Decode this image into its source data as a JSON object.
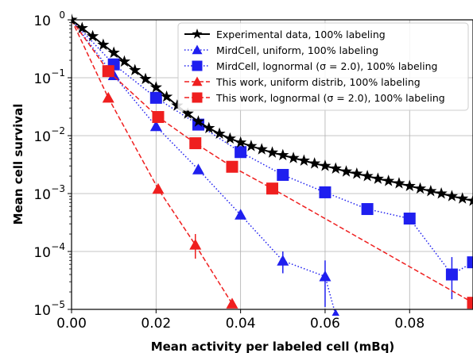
{
  "chart_data": {
    "type": "scatter",
    "xlabel": "Mean activity per labeled cell (mBq)",
    "ylabel": "Mean cell survival",
    "xlim": [
      0.0,
      0.095
    ],
    "ylim": [
      1e-05,
      1
    ],
    "yscale": "log",
    "grid": true,
    "legend_position": "top-right",
    "x_ticks": [
      {
        "value": 0.0,
        "label": "0.00"
      },
      {
        "value": 0.02,
        "label": "0.02"
      },
      {
        "value": 0.04,
        "label": "0.04"
      },
      {
        "value": 0.06,
        "label": "0.06"
      },
      {
        "value": 0.08,
        "label": "0.08"
      }
    ],
    "y_ticks": [
      {
        "value": 1,
        "base": "10",
        "exp": "0"
      },
      {
        "value": 0.1,
        "base": "10",
        "exp": "−1"
      },
      {
        "value": 0.01,
        "base": "10",
        "exp": "−2"
      },
      {
        "value": 0.001,
        "base": "10",
        "exp": "−3"
      },
      {
        "value": 0.0001,
        "base": "10",
        "exp": "−4"
      },
      {
        "value": 1e-05,
        "base": "10",
        "exp": "−5"
      }
    ],
    "series": [
      {
        "name": "Experimental data, 100% labeling",
        "color": "#000000",
        "marker": "star",
        "line": "solid",
        "points": [
          [
            0.0,
            1.0
          ],
          [
            0.0025,
            0.72
          ],
          [
            0.005,
            0.52
          ],
          [
            0.0075,
            0.37
          ],
          [
            0.01,
            0.27
          ],
          [
            0.0125,
            0.19
          ],
          [
            0.015,
            0.135
          ],
          [
            0.0175,
            0.095
          ],
          [
            0.02,
            0.068
          ],
          [
            0.0225,
            0.047
          ],
          [
            0.025,
            0.033
          ],
          [
            0.0275,
            0.024
          ],
          [
            0.03,
            0.0175
          ],
          [
            0.0325,
            0.0135
          ],
          [
            0.035,
            0.0108
          ],
          [
            0.0375,
            0.0089
          ],
          [
            0.04,
            0.0076
          ],
          [
            0.0425,
            0.0066
          ],
          [
            0.045,
            0.0058
          ],
          [
            0.0475,
            0.0051
          ],
          [
            0.05,
            0.0046
          ],
          [
            0.0525,
            0.0041
          ],
          [
            0.055,
            0.0037
          ],
          [
            0.0575,
            0.0033
          ],
          [
            0.06,
            0.003
          ],
          [
            0.0625,
            0.0027
          ],
          [
            0.065,
            0.0024
          ],
          [
            0.0675,
            0.0022
          ],
          [
            0.07,
            0.002
          ],
          [
            0.0725,
            0.0018
          ],
          [
            0.075,
            0.00165
          ],
          [
            0.0775,
            0.0015
          ],
          [
            0.08,
            0.00135
          ],
          [
            0.0825,
            0.00122
          ],
          [
            0.085,
            0.0011
          ],
          [
            0.0875,
            0.001
          ],
          [
            0.09,
            0.0009
          ],
          [
            0.0925,
            0.00082
          ],
          [
            0.095,
            0.00075
          ]
        ]
      },
      {
        "name": "MirdCell, uniform, 100% labeling",
        "color": "#1f1fef",
        "marker": "triangle",
        "line": "dotted",
        "points": [
          [
            0.0,
            1.0
          ],
          [
            0.01,
            0.11
          ],
          [
            0.02,
            0.0145
          ],
          [
            0.03,
            0.0026
          ],
          [
            0.04,
            0.00043
          ],
          [
            0.05,
            6.9e-05
          ],
          [
            0.06,
            3.7e-05
          ],
          [
            0.0625,
            8e-06
          ]
        ],
        "error_bars": [
          {
            "x": 0.05,
            "y": 6.9e-05,
            "lo": 4.2e-05,
            "hi": 0.0001
          },
          {
            "x": 0.06,
            "y": 3.7e-05,
            "lo": 1.1e-05,
            "hi": 7e-05
          }
        ]
      },
      {
        "name": "MirdCell, lognormal (σ = 2.0), 100% labeling",
        "color": "#1f1fef",
        "marker": "square",
        "line": "dotted",
        "points": [
          [
            0.0,
            1.0
          ],
          [
            0.01,
            0.17
          ],
          [
            0.02,
            0.045
          ],
          [
            0.03,
            0.0155
          ],
          [
            0.04,
            0.0052
          ],
          [
            0.05,
            0.0021
          ],
          [
            0.06,
            0.00105
          ],
          [
            0.07,
            0.00054
          ],
          [
            0.08,
            0.00037
          ],
          [
            0.09,
            4e-05
          ],
          [
            0.095,
            6.5e-05
          ]
        ],
        "error_bars": [
          {
            "x": 0.09,
            "y": 4e-05,
            "lo": 1.5e-05,
            "hi": 8e-05
          }
        ]
      },
      {
        "name": "This work, uniform distrib, 100% labeling",
        "color": "#ef1f1f",
        "marker": "triangle",
        "line": "dashed",
        "points": [
          [
            0.0,
            1.0
          ],
          [
            0.0087,
            0.045
          ],
          [
            0.0205,
            0.0012
          ],
          [
            0.0293,
            0.00013
          ],
          [
            0.038,
            1.25e-05
          ]
        ],
        "error_bars": [
          {
            "x": 0.0293,
            "y": 0.00013,
            "lo": 7.5e-05,
            "hi": 0.0002
          }
        ]
      },
      {
        "name": "This work, lognormal (σ = 2.0), 100% labeling",
        "color": "#ef1f1f",
        "marker": "square",
        "line": "dashed",
        "points": [
          [
            0.0,
            1.0
          ],
          [
            0.0087,
            0.13
          ],
          [
            0.0205,
            0.021
          ],
          [
            0.0293,
            0.0074
          ],
          [
            0.038,
            0.0029
          ],
          [
            0.0475,
            0.00122
          ],
          [
            0.095,
            1.3e-05
          ]
        ]
      }
    ]
  }
}
